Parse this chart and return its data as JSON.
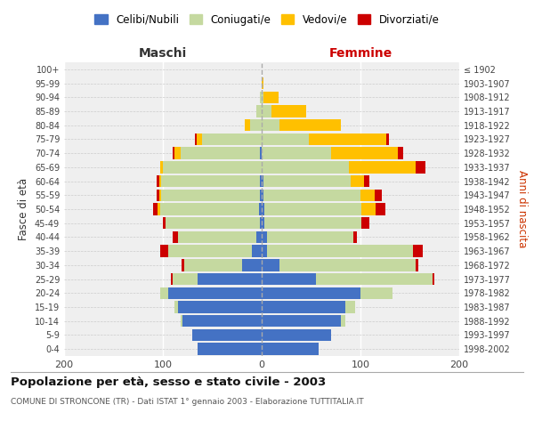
{
  "age_groups": [
    "100+",
    "95-99",
    "90-94",
    "85-89",
    "80-84",
    "75-79",
    "70-74",
    "65-69",
    "60-64",
    "55-59",
    "50-54",
    "45-49",
    "40-44",
    "35-39",
    "30-34",
    "25-29",
    "20-24",
    "15-19",
    "10-14",
    "5-9",
    "0-4"
  ],
  "birth_years": [
    "≤ 1902",
    "1903-1907",
    "1908-1912",
    "1913-1917",
    "1918-1922",
    "1923-1927",
    "1928-1932",
    "1933-1937",
    "1938-1942",
    "1943-1947",
    "1948-1952",
    "1953-1957",
    "1958-1962",
    "1963-1967",
    "1968-1972",
    "1973-1977",
    "1978-1982",
    "1983-1987",
    "1988-1992",
    "1993-1997",
    "1998-2002"
  ],
  "male_cel": [
    0,
    0,
    0,
    0,
    0,
    0,
    2,
    0,
    2,
    2,
    3,
    2,
    5,
    10,
    20,
    65,
    95,
    85,
    80,
    70,
    65
  ],
  "male_con": [
    0,
    0,
    2,
    5,
    12,
    60,
    80,
    100,
    100,
    100,
    100,
    95,
    80,
    85,
    58,
    25,
    8,
    3,
    2,
    0,
    0
  ],
  "male_ved": [
    0,
    0,
    0,
    0,
    5,
    6,
    6,
    3,
    2,
    2,
    2,
    0,
    0,
    0,
    0,
    0,
    0,
    0,
    0,
    0,
    0
  ],
  "male_div": [
    0,
    0,
    0,
    0,
    0,
    2,
    2,
    0,
    2,
    2,
    5,
    3,
    5,
    8,
    3,
    2,
    0,
    0,
    0,
    0,
    0
  ],
  "fem_nub": [
    0,
    0,
    0,
    0,
    0,
    0,
    0,
    0,
    2,
    2,
    3,
    3,
    5,
    5,
    18,
    55,
    100,
    85,
    80,
    70,
    58
  ],
  "fem_con": [
    0,
    0,
    2,
    10,
    18,
    48,
    70,
    88,
    88,
    98,
    98,
    98,
    88,
    148,
    138,
    118,
    32,
    10,
    5,
    0,
    0
  ],
  "fem_ved": [
    0,
    2,
    15,
    35,
    62,
    78,
    68,
    68,
    14,
    14,
    14,
    0,
    0,
    0,
    0,
    0,
    0,
    0,
    0,
    0,
    0
  ],
  "fem_div": [
    0,
    0,
    0,
    0,
    0,
    3,
    5,
    10,
    5,
    8,
    10,
    8,
    3,
    10,
    3,
    2,
    0,
    0,
    0,
    0,
    0
  ],
  "colors": {
    "celibe_nubile": "#4472c4",
    "coniugato_a": "#c5d9a0",
    "vedovo_a": "#ffc000",
    "divorziato_a": "#cc0000"
  },
  "title": "Popolazione per età, sesso e stato civile - 2003",
  "subtitle": "COMUNE DI STRONCONE (TR) - Dati ISTAT 1° gennaio 2003 - Elaborazione TUTTITALIA.IT",
  "xlabel_left": "Maschi",
  "xlabel_right": "Femmine",
  "ylabel_left": "Fasce di età",
  "ylabel_right": "Anni di nascita",
  "xlim": 200,
  "bg_color": "#efefef",
  "legend_labels": [
    "Celibi/Nubili",
    "Coniugati/e",
    "Vedovi/e",
    "Divorziati/e"
  ]
}
